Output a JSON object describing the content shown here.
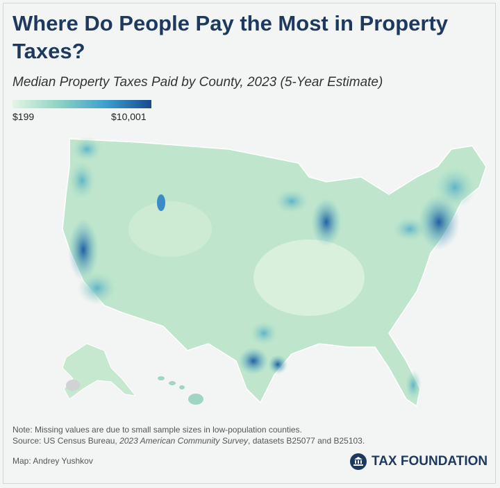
{
  "header": {
    "title": "Where Do People Pay the Most in Property Taxes?",
    "subtitle": "Median Property Taxes Paid by County, 2023 (5-Year Estimate)"
  },
  "legend": {
    "min_label": "$199",
    "max_label": "$10,001"
  },
  "footer": {
    "note": "Note: Missing values are due to small sample sizes in low-population counties.",
    "source": [
      "Source: US Census Bureau, ",
      "2023 American Community Survey",
      ", datasets B25077 and B25103."
    ],
    "credit": "Map: Andrey Yushkov",
    "logo": "TAX FOUNDATION"
  }
}
